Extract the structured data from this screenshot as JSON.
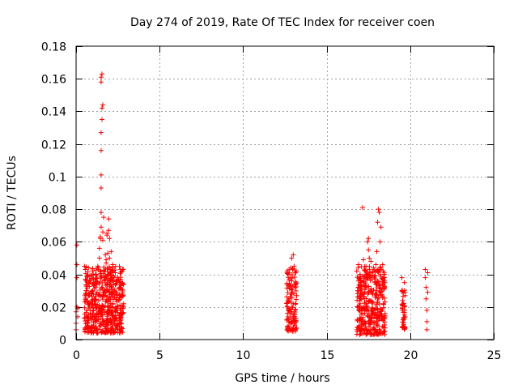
{
  "chart_data": {
    "type": "scatter",
    "title": "Day 274 of 2019, Rate Of TEC Index for receiver coen",
    "xlabel": "GPS time / hours",
    "ylabel": "ROTI / TECUs",
    "xlim": [
      0,
      25
    ],
    "ylim": [
      0,
      0.18
    ],
    "xticks": [
      0,
      5,
      10,
      15,
      20,
      25
    ],
    "xtick_labels": [
      "0",
      "5",
      "10",
      "15",
      "20",
      "25"
    ],
    "yticks": [
      0,
      0.02,
      0.04,
      0.06,
      0.08,
      0.1,
      0.12,
      0.14,
      0.16,
      0.18
    ],
    "ytick_labels": [
      "0",
      "0.02",
      "0.04",
      "0.06",
      "0.08",
      "0.1",
      "0.12",
      "0.14",
      "0.16",
      "0.18"
    ],
    "grid": true,
    "marker": "+",
    "color": "#ff0000",
    "series": [
      {
        "name": "ROTI",
        "points": [
          [
            0.0,
            0.006
          ],
          [
            0.0,
            0.01
          ],
          [
            0.0,
            0.017
          ],
          [
            0.05,
            0.02
          ],
          [
            0.05,
            0.038
          ],
          [
            0.05,
            0.046
          ],
          [
            0.05,
            0.058
          ],
          [
            0.1,
            0.014
          ],
          [
            0.1,
            0.019
          ],
          [
            0.5,
            0.045
          ],
          [
            0.55,
            0.043
          ],
          [
            0.6,
            0.036
          ],
          [
            0.6,
            0.03
          ],
          [
            0.6,
            0.024
          ],
          [
            0.65,
            0.018
          ],
          [
            0.7,
            0.014
          ],
          [
            0.7,
            0.01
          ],
          [
            0.75,
            0.022
          ],
          [
            0.8,
            0.027
          ],
          [
            0.85,
            0.016
          ],
          [
            0.9,
            0.012
          ],
          [
            1.0,
            0.03
          ],
          [
            1.0,
            0.021
          ],
          [
            1.05,
            0.018
          ],
          [
            1.1,
            0.025
          ],
          [
            1.1,
            0.033
          ],
          [
            1.15,
            0.014
          ],
          [
            1.2,
            0.04
          ],
          [
            1.2,
            0.028
          ],
          [
            1.25,
            0.02
          ],
          [
            1.3,
            0.035
          ],
          [
            1.3,
            0.045
          ],
          [
            1.35,
            0.024
          ],
          [
            1.4,
            0.05
          ],
          [
            1.4,
            0.056
          ],
          [
            1.45,
            0.063
          ],
          [
            1.45,
            0.062
          ],
          [
            1.5,
            0.069
          ],
          [
            1.5,
            0.078
          ],
          [
            1.5,
            0.093
          ],
          [
            1.5,
            0.101
          ],
          [
            1.5,
            0.116
          ],
          [
            1.5,
            0.127
          ],
          [
            1.55,
            0.135
          ],
          [
            1.55,
            0.142
          ],
          [
            1.6,
            0.144
          ],
          [
            1.5,
            0.158
          ],
          [
            1.5,
            0.161
          ],
          [
            1.55,
            0.163
          ],
          [
            1.6,
            0.066
          ],
          [
            1.6,
            0.061
          ],
          [
            1.65,
            0.075
          ],
          [
            1.65,
            0.042
          ],
          [
            1.7,
            0.038
          ],
          [
            1.7,
            0.03
          ],
          [
            1.75,
            0.052
          ],
          [
            1.8,
            0.047
          ],
          [
            1.8,
            0.049
          ],
          [
            1.85,
            0.065
          ],
          [
            1.85,
            0.064
          ],
          [
            1.9,
            0.053
          ],
          [
            1.95,
            0.074
          ],
          [
            1.95,
            0.067
          ],
          [
            2.0,
            0.05
          ],
          [
            2.0,
            0.062
          ],
          [
            2.05,
            0.043
          ],
          [
            2.05,
            0.036
          ],
          [
            2.1,
            0.054
          ],
          [
            2.1,
            0.028
          ],
          [
            2.15,
            0.032
          ],
          [
            2.2,
            0.046
          ],
          [
            2.2,
            0.022
          ],
          [
            2.25,
            0.039
          ],
          [
            2.3,
            0.026
          ],
          [
            2.35,
            0.041
          ],
          [
            2.4,
            0.034
          ],
          [
            2.45,
            0.019
          ],
          [
            2.5,
            0.038
          ],
          [
            2.55,
            0.024
          ],
          [
            2.6,
            0.035
          ],
          [
            2.65,
            0.016
          ],
          [
            2.7,
            0.027
          ],
          [
            2.75,
            0.042
          ],
          [
            2.8,
            0.019
          ],
          [
            2.85,
            0.022
          ],
          [
            12.6,
            0.012
          ],
          [
            12.65,
            0.02
          ],
          [
            12.7,
            0.04
          ],
          [
            12.7,
            0.033
          ],
          [
            12.75,
            0.025
          ],
          [
            12.75,
            0.008
          ],
          [
            12.8,
            0.016
          ],
          [
            12.85,
            0.044
          ],
          [
            12.9,
            0.05
          ],
          [
            12.9,
            0.036
          ],
          [
            12.95,
            0.029
          ],
          [
            13.0,
            0.052
          ],
          [
            13.0,
            0.022
          ],
          [
            13.05,
            0.045
          ],
          [
            13.05,
            0.012
          ],
          [
            13.1,
            0.032
          ],
          [
            13.1,
            0.018
          ],
          [
            13.15,
            0.041
          ],
          [
            13.2,
            0.027
          ],
          [
            13.2,
            0.007
          ],
          [
            16.8,
            0.042
          ],
          [
            16.85,
            0.03
          ],
          [
            16.9,
            0.046
          ],
          [
            16.9,
            0.036
          ],
          [
            16.95,
            0.024
          ],
          [
            17.0,
            0.018
          ],
          [
            17.0,
            0.04
          ],
          [
            17.05,
            0.027
          ],
          [
            17.1,
            0.012
          ],
          [
            17.15,
            0.081
          ],
          [
            17.2,
            0.049
          ],
          [
            17.25,
            0.033
          ],
          [
            17.3,
            0.022
          ],
          [
            17.35,
            0.045
          ],
          [
            17.4,
            0.037
          ],
          [
            17.45,
            0.06
          ],
          [
            17.5,
            0.062
          ],
          [
            17.5,
            0.055
          ],
          [
            17.55,
            0.05
          ],
          [
            17.6,
            0.041
          ],
          [
            17.65,
            0.048
          ],
          [
            17.7,
            0.029
          ],
          [
            17.75,
            0.019
          ],
          [
            17.8,
            0.044
          ],
          [
            17.85,
            0.038
          ],
          [
            17.9,
            0.026
          ],
          [
            17.95,
            0.046
          ],
          [
            18.0,
            0.034
          ],
          [
            18.0,
            0.054
          ],
          [
            18.05,
            0.072
          ],
          [
            18.1,
            0.08
          ],
          [
            18.15,
            0.078
          ],
          [
            18.2,
            0.06
          ],
          [
            18.2,
            0.042
          ],
          [
            18.25,
            0.069
          ],
          [
            18.3,
            0.031
          ],
          [
            18.35,
            0.046
          ],
          [
            18.4,
            0.022
          ],
          [
            18.45,
            0.04
          ],
          [
            18.5,
            0.016
          ],
          [
            19.5,
            0.038
          ],
          [
            19.5,
            0.03
          ],
          [
            19.55,
            0.024
          ],
          [
            19.55,
            0.018
          ],
          [
            19.6,
            0.012
          ],
          [
            19.6,
            0.008
          ],
          [
            19.65,
            0.035
          ],
          [
            19.65,
            0.02
          ],
          [
            19.7,
            0.014
          ],
          [
            19.7,
            0.027
          ],
          [
            20.9,
            0.043
          ],
          [
            20.9,
            0.038
          ],
          [
            20.95,
            0.032
          ],
          [
            20.95,
            0.025
          ],
          [
            21.0,
            0.018
          ],
          [
            21.0,
            0.011
          ],
          [
            21.0,
            0.006
          ],
          [
            21.05,
            0.041
          ],
          [
            21.05,
            0.029
          ]
        ],
        "dense_clusters": [
          {
            "x": [
              0.5,
              2.85
            ],
            "y": [
              0.004,
              0.045
            ],
            "count": 520
          },
          {
            "x": [
              12.6,
              13.2
            ],
            "y": [
              0.005,
              0.045
            ],
            "count": 110
          },
          {
            "x": [
              16.8,
              18.5
            ],
            "y": [
              0.003,
              0.045
            ],
            "count": 360
          },
          {
            "x": [
              19.5,
              19.7
            ],
            "y": [
              0.006,
              0.035
            ],
            "count": 35
          }
        ]
      }
    ]
  }
}
